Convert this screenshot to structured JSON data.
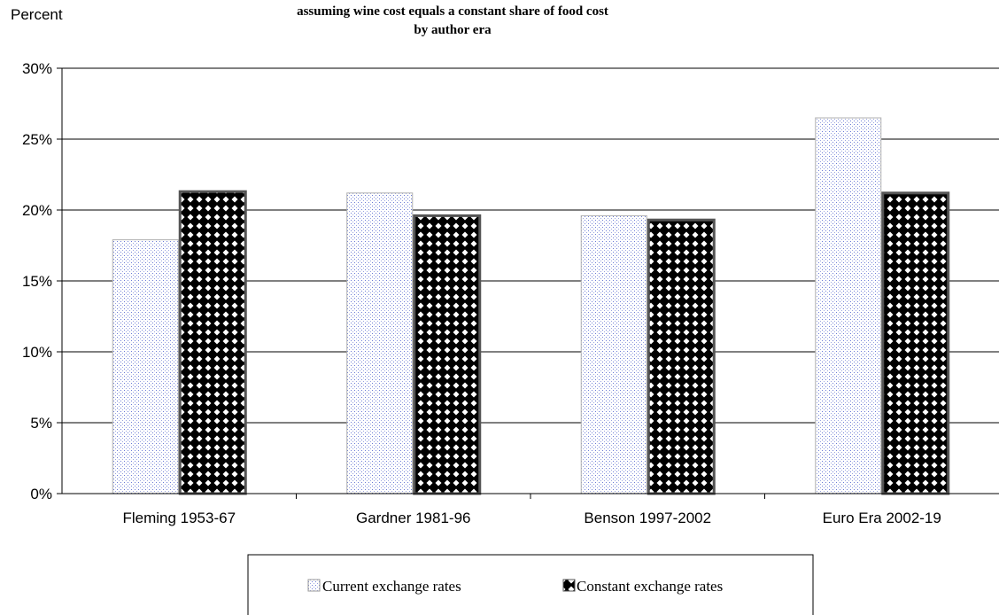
{
  "chart_data": {
    "type": "bar",
    "title": "assuming wine cost equals a constant share of food cost",
    "subtitle": "by author era",
    "ylabel": "Percent",
    "xlabel": "",
    "categories": [
      "Fleming 1953-67",
      "Gardner 1981-96",
      "Benson 1997-2002",
      "Euro Era 2002-19"
    ],
    "series": [
      {
        "name": "Current exchange rates",
        "values": [
          17.9,
          21.2,
          19.6,
          26.5
        ]
      },
      {
        "name": "Constant exchange rates",
        "values": [
          21.3,
          19.6,
          19.3,
          21.2
        ]
      }
    ],
    "ylim": [
      0,
      30
    ],
    "yticks": [
      "0%",
      "5%",
      "10%",
      "15%",
      "20%",
      "25%",
      "30%"
    ],
    "ytick_values": [
      0,
      5,
      10,
      15,
      20,
      25,
      30
    ],
    "grid": true,
    "legend_position": "bottom"
  }
}
